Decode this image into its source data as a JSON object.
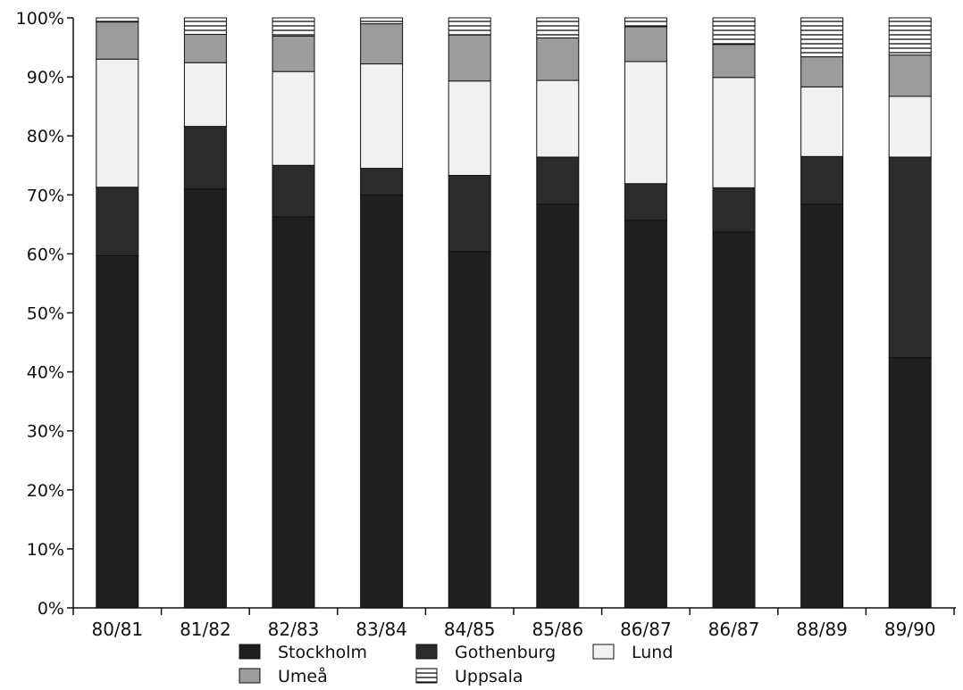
{
  "chart_data": {
    "type": "bar",
    "stacked": true,
    "categories": [
      "80/81",
      "81/82",
      "82/83",
      "83/84",
      "84/85",
      "85/86",
      "86/87",
      "86/87",
      "88/89",
      "89/90"
    ],
    "series": [
      {
        "name": "Stockholm",
        "values": [
          59.7,
          71.0,
          66.3,
          70.0,
          60.4,
          68.4,
          65.7,
          63.7,
          68.4,
          42.4
        ]
      },
      {
        "name": "Gothenburg",
        "values": [
          11.6,
          10.6,
          8.7,
          4.5,
          12.9,
          8.0,
          6.2,
          7.5,
          8.1,
          34.0
        ]
      },
      {
        "name": "Lund",
        "values": [
          21.7,
          10.8,
          15.9,
          17.7,
          16.0,
          13.0,
          20.7,
          18.7,
          11.8,
          10.3
        ]
      },
      {
        "name": "Umeå",
        "values": [
          6.3,
          4.8,
          6.0,
          6.8,
          7.8,
          7.2,
          5.9,
          5.6,
          5.1,
          7.0
        ]
      },
      {
        "name": "Uppsala",
        "values": [
          0.7,
          2.8,
          3.1,
          1.0,
          2.9,
          3.4,
          1.5,
          4.5,
          6.6,
          6.3
        ]
      }
    ],
    "ylim": [
      0,
      100
    ],
    "yticks": [
      "0%",
      "10%",
      "20%",
      "30%",
      "40%",
      "50%",
      "60%",
      "70%",
      "80%",
      "90%",
      "100%"
    ],
    "title": "",
    "xlabel": "",
    "ylabel": "",
    "grid": false,
    "legend_position": "bottom",
    "colors": {
      "Stockholm": "#1f1f1f",
      "Gothenburg": "#2b2b2b",
      "Lund": "#f1f1f1",
      "Umeå": "#9c9c9c",
      "Uppsala": "#ffffff"
    }
  }
}
